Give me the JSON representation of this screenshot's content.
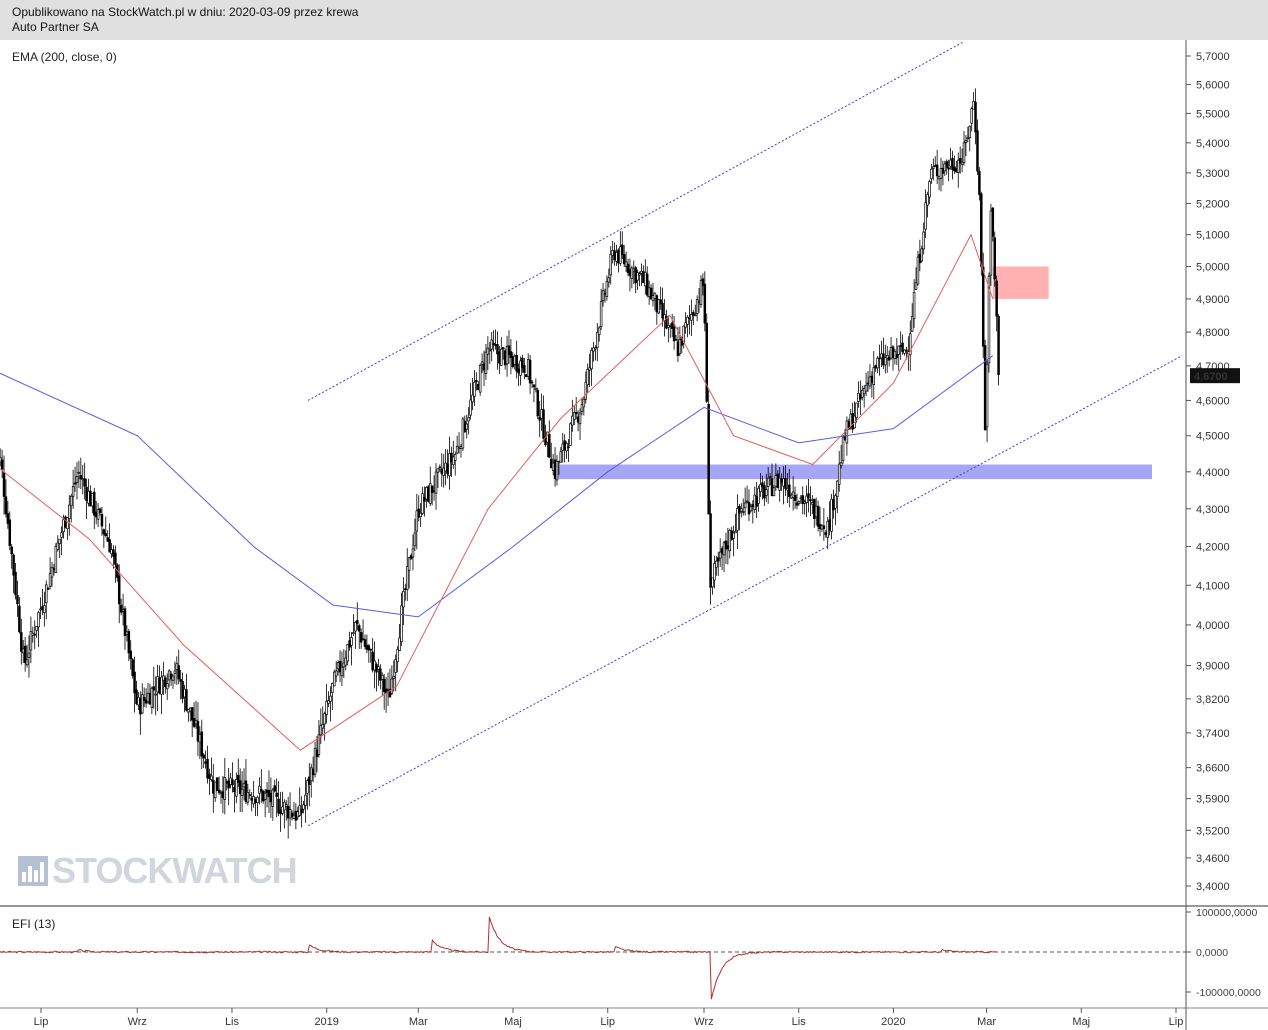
{
  "header": {
    "line1": "Opublikowano na StockWatch.pl w dniu: 2020-03-09 przez krewa",
    "line2": "Auto Partner SA"
  },
  "indicators": {
    "ema_label": "EMA (200, close, 0)",
    "efi_label": "EFI (13)"
  },
  "logo": {
    "text": "STOCKWATCH"
  },
  "colors": {
    "candle": "#000000",
    "ema_long": "#5a5ae0",
    "ema_short": "#e06060",
    "trendline": "#4040d0",
    "support_zone": "#9c9cf5",
    "resistance_zone": "#ffa8a8",
    "efi": "#b03030"
  },
  "chart_data": {
    "type": "candlestick",
    "ylabel": "",
    "y_ticks": [
      "5,7000",
      "5,6000",
      "5,5000",
      "5,4000",
      "5,3000",
      "5,2000",
      "5,1000",
      "5,0000",
      "4,9000",
      "4,8000",
      "4,7000",
      "4,6000",
      "4,5000",
      "4,4000",
      "4,3000",
      "4,2000",
      "4,1000",
      "4,0000",
      "3,9000",
      "3,8200",
      "3,7400",
      "3,6600",
      "3,5900",
      "3,5200",
      "3,4600",
      "3,4000"
    ],
    "y_tick_values": [
      5.7,
      5.6,
      5.5,
      5.4,
      5.3,
      5.2,
      5.1,
      5.0,
      4.9,
      4.8,
      4.7,
      4.6,
      4.5,
      4.4,
      4.3,
      4.2,
      4.1,
      4.0,
      3.9,
      3.82,
      3.74,
      3.66,
      3.59,
      3.52,
      3.46,
      3.4
    ],
    "scale": "log",
    "ylim": [
      3.36,
      5.76
    ],
    "x_ticks": [
      "Lip",
      "Wrz",
      "Lis",
      "2019",
      "Mar",
      "Maj",
      "Lip",
      "Wrz",
      "Lis",
      "2020",
      "Mar",
      "Maj",
      "Lip"
    ],
    "x_tick_dates": [
      "2018-07-01",
      "2018-09-01",
      "2018-11-01",
      "2019-01-01",
      "2019-03-01",
      "2019-05-01",
      "2019-07-01",
      "2019-09-01",
      "2019-11-01",
      "2020-01-01",
      "2020-03-01",
      "2020-05-01",
      "2020-07-01"
    ],
    "last_price": "4,6700",
    "key_closes": [
      {
        "date": "2018-06-05",
        "close": 4.43
      },
      {
        "date": "2018-06-20",
        "close": 3.9
      },
      {
        "date": "2018-07-05",
        "close": 4.1
      },
      {
        "date": "2018-07-25",
        "close": 4.4
      },
      {
        "date": "2018-08-15",
        "close": 4.2
      },
      {
        "date": "2018-09-01",
        "close": 3.8
      },
      {
        "date": "2018-09-25",
        "close": 3.9
      },
      {
        "date": "2018-10-20",
        "close": 3.62
      },
      {
        "date": "2018-11-20",
        "close": 3.6
      },
      {
        "date": "2018-12-15",
        "close": 3.55
      },
      {
        "date": "2019-01-05",
        "close": 3.85
      },
      {
        "date": "2019-01-20",
        "close": 4.0
      },
      {
        "date": "2019-02-10",
        "close": 3.82
      },
      {
        "date": "2019-03-01",
        "close": 4.3
      },
      {
        "date": "2019-03-25",
        "close": 4.45
      },
      {
        "date": "2019-04-15",
        "close": 4.75
      },
      {
        "date": "2019-05-10",
        "close": 4.7
      },
      {
        "date": "2019-05-28",
        "close": 4.4
      },
      {
        "date": "2019-06-15",
        "close": 4.6
      },
      {
        "date": "2019-07-05",
        "close": 5.05
      },
      {
        "date": "2019-07-25",
        "close": 4.95
      },
      {
        "date": "2019-08-15",
        "close": 4.75
      },
      {
        "date": "2019-09-01",
        "close": 4.95
      },
      {
        "date": "2019-09-05",
        "close": 4.1
      },
      {
        "date": "2019-09-25",
        "close": 4.3
      },
      {
        "date": "2019-10-20",
        "close": 4.38
      },
      {
        "date": "2019-11-10",
        "close": 4.3
      },
      {
        "date": "2019-11-20",
        "close": 4.25
      },
      {
        "date": "2019-12-01",
        "close": 4.5
      },
      {
        "date": "2019-12-20",
        "close": 4.7
      },
      {
        "date": "2020-01-10",
        "close": 4.75
      },
      {
        "date": "2020-01-25",
        "close": 5.3
      },
      {
        "date": "2020-02-15",
        "close": 5.35
      },
      {
        "date": "2020-02-22",
        "close": 5.55
      },
      {
        "date": "2020-02-26",
        "close": 5.15
      },
      {
        "date": "2020-02-29",
        "close": 4.5
      },
      {
        "date": "2020-03-04",
        "close": 5.2
      },
      {
        "date": "2020-03-09",
        "close": 4.67
      }
    ],
    "ema_200_key_points": [
      {
        "date": "2018-05-25",
        "value": 4.7
      },
      {
        "date": "2018-09-01",
        "value": 4.5
      },
      {
        "date": "2018-11-15",
        "value": 4.2
      },
      {
        "date": "2019-01-05",
        "value": 4.05
      },
      {
        "date": "2019-03-01",
        "value": 4.02
      },
      {
        "date": "2019-05-01",
        "value": 4.2
      },
      {
        "date": "2019-07-01",
        "value": 4.4
      },
      {
        "date": "2019-09-01",
        "value": 4.58
      },
      {
        "date": "2019-11-01",
        "value": 4.48
      },
      {
        "date": "2020-01-01",
        "value": 4.52
      },
      {
        "date": "2020-03-05",
        "value": 4.73
      }
    ],
    "ema_short_key_points": [
      {
        "date": "2018-06-01",
        "value": 4.42
      },
      {
        "date": "2018-08-01",
        "value": 4.22
      },
      {
        "date": "2018-10-01",
        "value": 3.95
      },
      {
        "date": "2018-12-15",
        "value": 3.7
      },
      {
        "date": "2019-02-15",
        "value": 3.85
      },
      {
        "date": "2019-04-15",
        "value": 4.3
      },
      {
        "date": "2019-06-01",
        "value": 4.55
      },
      {
        "date": "2019-08-10",
        "value": 4.85
      },
      {
        "date": "2019-09-20",
        "value": 4.5
      },
      {
        "date": "2019-11-10",
        "value": 4.42
      },
      {
        "date": "2020-01-01",
        "value": 4.65
      },
      {
        "date": "2020-02-20",
        "value": 5.1
      },
      {
        "date": "2020-03-05",
        "value": 4.9
      }
    ],
    "trendlines": [
      {
        "name": "upper-channel",
        "from": {
          "date": "2018-12-20",
          "value": 4.6
        },
        "to": {
          "date": "2020-02-15",
          "value": 5.75
        }
      },
      {
        "name": "lower-channel",
        "from": {
          "date": "2018-12-20",
          "value": 3.53
        },
        "to": {
          "date": "2020-07-05",
          "value": 4.73
        }
      }
    ],
    "zones": [
      {
        "name": "support",
        "from": "2019-05-28",
        "to": "2020-07-01",
        "low": 4.38,
        "high": 4.42
      },
      {
        "name": "resistance",
        "from": "2020-03-05",
        "to": "2020-04-10",
        "low": 4.9,
        "high": 5.0
      }
    ],
    "efi": {
      "label": "EFI (13)",
      "y_ticks": [
        "100000,0000",
        "0,0000",
        "-100000,0000"
      ],
      "y_tick_values": [
        100000,
        0,
        -100000
      ],
      "spikes": [
        {
          "date": "2018-07-25",
          "value": 5000
        },
        {
          "date": "2018-12-20",
          "value": 20000
        },
        {
          "date": "2019-03-10",
          "value": 30000
        },
        {
          "date": "2019-04-15",
          "value": 100000
        },
        {
          "date": "2019-07-05",
          "value": 15000
        },
        {
          "date": "2019-09-05",
          "value": -135000
        },
        {
          "date": "2020-02-01",
          "value": 5000
        }
      ]
    }
  }
}
